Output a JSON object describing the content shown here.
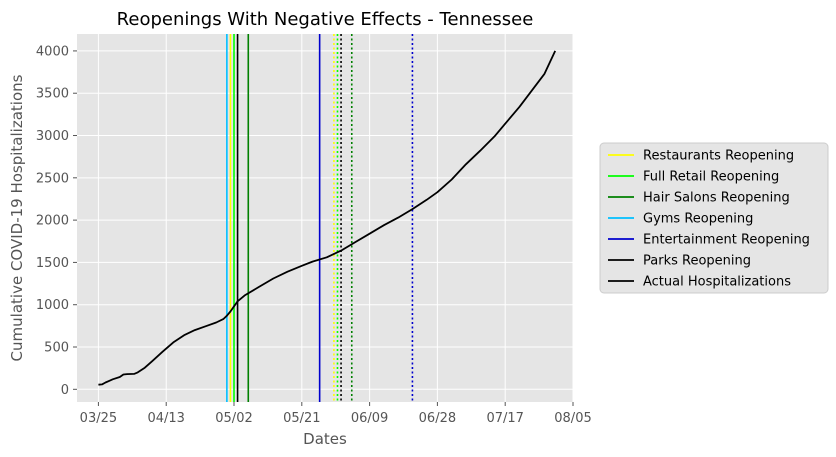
{
  "chart_data": {
    "type": "line",
    "title": "Reopenings With Negative Effects - Tennessee",
    "xlabel": "Dates",
    "ylabel": "Cumulative COVID-19 Hospitalizations",
    "x_axis": {
      "ticks": [
        {
          "date": "2020-03-25",
          "label": "03/25"
        },
        {
          "date": "2020-04-13",
          "label": "04/13"
        },
        {
          "date": "2020-05-02",
          "label": "05/02"
        },
        {
          "date": "2020-05-21",
          "label": "05/21"
        },
        {
          "date": "2020-06-09",
          "label": "06/09"
        },
        {
          "date": "2020-06-28",
          "label": "06/28"
        },
        {
          "date": "2020-07-17",
          "label": "07/17"
        },
        {
          "date": "2020-08-05",
          "label": "08/05"
        }
      ],
      "xlim": [
        "2020-03-19",
        "2020-08-05"
      ]
    },
    "y_axis": {
      "ticks": [
        0,
        500,
        1000,
        1500,
        2000,
        2500,
        3000,
        3500,
        4000
      ],
      "ylim": [
        -150,
        4200
      ]
    },
    "grid": true,
    "legend_position": "right",
    "series": [
      {
        "name": "Actual Hospitalizations",
        "color": "#000000",
        "points": [
          [
            "2020-03-25",
            55
          ],
          [
            "2020-03-26",
            58
          ],
          [
            "2020-03-27",
            80
          ],
          [
            "2020-03-28",
            100
          ],
          [
            "2020-03-29",
            118
          ],
          [
            "2020-03-31",
            145
          ],
          [
            "2020-04-01",
            175
          ],
          [
            "2020-04-02",
            180
          ],
          [
            "2020-04-04",
            182
          ],
          [
            "2020-04-05",
            200
          ],
          [
            "2020-04-07",
            255
          ],
          [
            "2020-04-09",
            330
          ],
          [
            "2020-04-12",
            445
          ],
          [
            "2020-04-15",
            555
          ],
          [
            "2020-04-18",
            640
          ],
          [
            "2020-04-21",
            700
          ],
          [
            "2020-04-24",
            745
          ],
          [
            "2020-04-27",
            790
          ],
          [
            "2020-04-29",
            830
          ],
          [
            "2020-04-30",
            870
          ],
          [
            "2020-05-01",
            920
          ],
          [
            "2020-05-02",
            980
          ],
          [
            "2020-05-03",
            1040
          ],
          [
            "2020-05-05",
            1110
          ],
          [
            "2020-05-09",
            1210
          ],
          [
            "2020-05-13",
            1310
          ],
          [
            "2020-05-17",
            1390
          ],
          [
            "2020-05-21",
            1460
          ],
          [
            "2020-05-24",
            1510
          ],
          [
            "2020-05-28",
            1560
          ],
          [
            "2020-06-01",
            1640
          ],
          [
            "2020-06-05",
            1740
          ],
          [
            "2020-06-09",
            1840
          ],
          [
            "2020-06-13",
            1940
          ],
          [
            "2020-06-17",
            2030
          ],
          [
            "2020-06-21",
            2130
          ],
          [
            "2020-06-25",
            2240
          ],
          [
            "2020-06-28",
            2330
          ],
          [
            "2020-07-02",
            2480
          ],
          [
            "2020-07-06",
            2660
          ],
          [
            "2020-07-10",
            2820
          ],
          [
            "2020-07-14",
            2990
          ],
          [
            "2020-07-17",
            3140
          ],
          [
            "2020-07-21",
            3340
          ],
          [
            "2020-07-25",
            3560
          ],
          [
            "2020-07-28",
            3730
          ],
          [
            "2020-07-31",
            4000
          ]
        ]
      }
    ],
    "reopenings": [
      {
        "name": "Restaurants Reopening",
        "color": "#ffff00",
        "solid": "2020-05-01",
        "dotted": "2020-05-30"
      },
      {
        "name": "Full Retail Reopening",
        "color": "#00ff00",
        "solid": "2020-05-02",
        "dotted": "2020-05-31"
      },
      {
        "name": "Hair Salons Reopening",
        "color": "#008000",
        "solid": "2020-05-06",
        "dotted": "2020-06-04"
      },
      {
        "name": "Gyms Reopening",
        "color": "#00bfff",
        "solid": "2020-04-30",
        "dotted": null
      },
      {
        "name": "Entertainment Reopening",
        "color": "#0000cd",
        "solid": "2020-05-26",
        "dotted": "2020-06-21"
      },
      {
        "name": "Parks Reopening",
        "color": "#000000",
        "solid": "2020-05-03",
        "dotted": "2020-06-01"
      }
    ],
    "legend": [
      {
        "label": "Restaurants Reopening",
        "color": "#ffff00"
      },
      {
        "label": "Full Retail Reopening",
        "color": "#00ff00"
      },
      {
        "label": "Hair Salons Reopening",
        "color": "#008000"
      },
      {
        "label": "Gyms Reopening",
        "color": "#00bfff"
      },
      {
        "label": "Entertainment Reopening",
        "color": "#0000cd"
      },
      {
        "label": "Parks Reopening",
        "color": "#000000"
      },
      {
        "label": "Actual Hospitalizations",
        "color": "#000000"
      }
    ]
  }
}
